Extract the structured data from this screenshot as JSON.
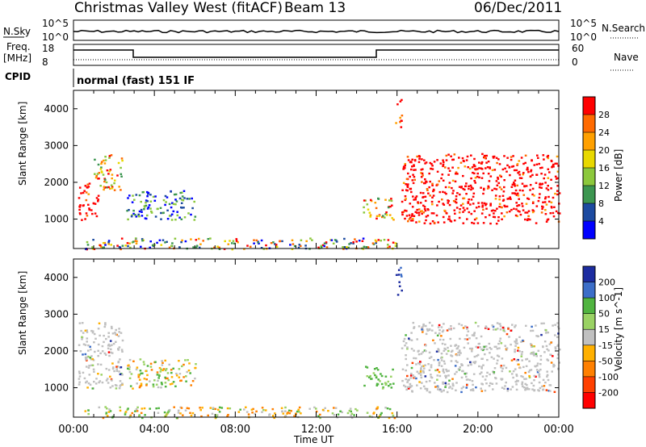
{
  "header": {
    "title": "Christmas Valley West (fitACF)",
    "beam": "Beam 13",
    "date": "06/Dec/2011"
  },
  "status_panels": {
    "nsky_label": "N.Sky",
    "nsky_ticks": [
      "10^5",
      "10^0"
    ],
    "nsearch_label": "N.Search",
    "nsearch_ticks": [
      "10^5",
      "10^0"
    ],
    "freq_label": "Freq.",
    "freq_unit": "[MHz]",
    "freq_ticks": [
      "18",
      "8"
    ],
    "nave_label": "Nave",
    "nave_ticks": [
      "60",
      "0"
    ],
    "cpid_label": "CPID",
    "cpid_text": "normal (fast) 151 IF"
  },
  "chart_data": [
    {
      "type": "heatmap",
      "name": "power",
      "ylabel": "Slant Range [km]",
      "y_ticks": [
        "4000",
        "3000",
        "2000",
        "1000"
      ],
      "ylim": [
        200,
        4500
      ],
      "x_ticks": [
        "00:00",
        "04:00",
        "08:00",
        "12:00",
        "16:00",
        "20:00",
        "00:00"
      ],
      "colorbar": {
        "label": "Power [dB]",
        "ticks": [
          "28",
          "24",
          "20",
          "16",
          "12",
          "8",
          "4"
        ],
        "colors": [
          "#ff0000",
          "#ff6a00",
          "#ffa000",
          "#e8d800",
          "#8cc83c",
          "#3c9650",
          "#1c4aa0",
          "#0000ff"
        ]
      },
      "regions": [
        {
          "t": [
            0.2,
            1.2
          ],
          "range": [
            1000,
            2000
          ],
          "level": "high"
        },
        {
          "t": [
            1.0,
            2.4
          ],
          "range": [
            1800,
            2800
          ],
          "level": "medium"
        },
        {
          "t": [
            2.6,
            6.0
          ],
          "range": [
            1000,
            1800
          ],
          "level": "low"
        },
        {
          "t": [
            14.3,
            15.8
          ],
          "range": [
            1000,
            1600
          ],
          "level": "medium"
        },
        {
          "t": [
            15.9,
            16.2
          ],
          "range": [
            3500,
            4300
          ],
          "level": "high"
        },
        {
          "t": [
            16.2,
            24.0
          ],
          "range": [
            900,
            2800
          ],
          "level": "high"
        },
        {
          "t": [
            0.3,
            16.0
          ],
          "range": [
            200,
            500
          ],
          "level": "mixed"
        }
      ]
    },
    {
      "type": "heatmap",
      "name": "velocity",
      "ylabel": "Slant Range [km]",
      "y_ticks": [
        "4000",
        "3000",
        "2000",
        "1000"
      ],
      "ylim": [
        200,
        4500
      ],
      "x_ticks": [
        "00:00",
        "04:00",
        "08:00",
        "12:00",
        "16:00",
        "20:00",
        "00:00"
      ],
      "xlabel": "Time UT",
      "colorbar": {
        "label": "Velocity [m s^-1]",
        "ticks": [
          "200",
          "100",
          "50",
          "15",
          "-15",
          "-50",
          "-100",
          "-200"
        ],
        "colors": [
          "#1c2ca0",
          "#3c6ec8",
          "#50b440",
          "#9ad264",
          "#c0c0c0",
          "#ffb000",
          "#ff8000",
          "#ff4000",
          "#ff0000"
        ]
      },
      "regions": [
        {
          "t": [
            0.2,
            2.4
          ],
          "range": [
            1000,
            2800
          ],
          "level": "grey"
        },
        {
          "t": [
            2.6,
            6.0
          ],
          "range": [
            1000,
            1800
          ],
          "level": "green-orange"
        },
        {
          "t": [
            14.3,
            15.8
          ],
          "range": [
            1000,
            1600
          ],
          "level": "green"
        },
        {
          "t": [
            15.9,
            16.2
          ],
          "range": [
            3500,
            4300
          ],
          "level": "blue"
        },
        {
          "t": [
            16.2,
            24.0
          ],
          "range": [
            900,
            2800
          ],
          "level": "grey"
        },
        {
          "t": [
            0.3,
            16.0
          ],
          "range": [
            200,
            500
          ],
          "level": "green-orange"
        }
      ]
    }
  ]
}
